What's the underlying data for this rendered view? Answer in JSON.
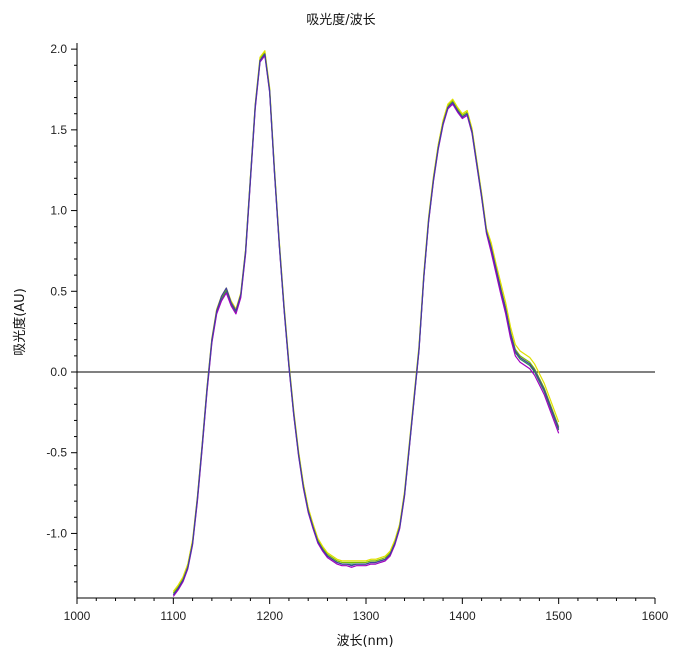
{
  "chart_data": {
    "type": "line",
    "title": "吸光度/波长",
    "xlabel": "波长(nm)",
    "ylabel": "吸光度(AU)",
    "xlim": [
      1000,
      1600
    ],
    "ylim": [
      -1.4,
      2.1
    ],
    "xticks": [
      1000,
      1100,
      1200,
      1300,
      1400,
      1500,
      1600
    ],
    "yticks": [
      -1.0,
      -0.5,
      0.0,
      0.5,
      1.0,
      1.5,
      2.0
    ],
    "xtick_labels": [
      "1000",
      "1100",
      "1200",
      "1300",
      "1400",
      "1500",
      "1600"
    ],
    "ytick_labels": [
      "-1.0",
      "-0.5",
      "0.0",
      "0.5",
      "1.0",
      "1.5",
      "2.0"
    ],
    "zero_line": 0.0,
    "grid": false,
    "legend": "none",
    "x": [
      1100,
      1105,
      1110,
      1115,
      1120,
      1125,
      1130,
      1135,
      1140,
      1145,
      1150,
      1155,
      1160,
      1165,
      1170,
      1175,
      1180,
      1185,
      1190,
      1195,
      1200,
      1205,
      1210,
      1215,
      1220,
      1225,
      1230,
      1235,
      1240,
      1245,
      1250,
      1255,
      1260,
      1265,
      1270,
      1275,
      1280,
      1285,
      1290,
      1295,
      1300,
      1305,
      1310,
      1315,
      1320,
      1325,
      1330,
      1335,
      1340,
      1345,
      1350,
      1355,
      1360,
      1365,
      1370,
      1375,
      1380,
      1385,
      1390,
      1395,
      1400,
      1405,
      1410,
      1415,
      1420,
      1425,
      1430,
      1435,
      1440,
      1445,
      1450,
      1455,
      1460,
      1465,
      1470,
      1475,
      1480,
      1485,
      1490,
      1495,
      1500
    ],
    "series": [
      {
        "color": "#7cc000",
        "values": [
          -1.37,
          -1.33,
          -1.28,
          -1.2,
          -1.05,
          -0.78,
          -0.45,
          -0.1,
          0.2,
          0.38,
          0.46,
          0.51,
          0.43,
          0.38,
          0.48,
          0.75,
          1.2,
          1.65,
          1.94,
          1.98,
          1.75,
          1.25,
          0.8,
          0.4,
          0.05,
          -0.25,
          -0.5,
          -0.7,
          -0.85,
          -0.95,
          -1.04,
          -1.09,
          -1.13,
          -1.15,
          -1.17,
          -1.18,
          -1.18,
          -1.18,
          -1.18,
          -1.18,
          -1.18,
          -1.17,
          -1.17,
          -1.16,
          -1.15,
          -1.12,
          -1.05,
          -0.95,
          -0.75,
          -0.45,
          -0.15,
          0.15,
          0.6,
          0.95,
          1.2,
          1.4,
          1.55,
          1.65,
          1.68,
          1.63,
          1.59,
          1.61,
          1.5,
          1.3,
          1.1,
          0.88,
          0.78,
          0.65,
          0.52,
          0.4,
          0.25,
          0.14,
          0.1,
          0.08,
          0.06,
          0.02,
          -0.04,
          -0.1,
          -0.18,
          -0.26,
          -0.34
        ]
      },
      {
        "color": "#e0e000",
        "values": [
          -1.36,
          -1.32,
          -1.27,
          -1.19,
          -1.04,
          -0.77,
          -0.44,
          -0.09,
          0.21,
          0.39,
          0.47,
          0.52,
          0.44,
          0.39,
          0.49,
          0.76,
          1.21,
          1.66,
          1.95,
          1.99,
          1.76,
          1.26,
          0.81,
          0.41,
          0.06,
          -0.24,
          -0.49,
          -0.69,
          -0.84,
          -0.94,
          -1.03,
          -1.08,
          -1.12,
          -1.14,
          -1.16,
          -1.17,
          -1.17,
          -1.17,
          -1.17,
          -1.17,
          -1.17,
          -1.16,
          -1.16,
          -1.15,
          -1.14,
          -1.11,
          -1.04,
          -0.94,
          -0.74,
          -0.44,
          -0.14,
          0.16,
          0.61,
          0.96,
          1.21,
          1.41,
          1.56,
          1.66,
          1.69,
          1.64,
          1.6,
          1.62,
          1.51,
          1.31,
          1.11,
          0.89,
          0.8,
          0.67,
          0.55,
          0.43,
          0.28,
          0.17,
          0.13,
          0.11,
          0.09,
          0.05,
          -0.01,
          -0.07,
          -0.15,
          -0.23,
          -0.31
        ]
      },
      {
        "color": "#2e8b57",
        "values": [
          -1.38,
          -1.34,
          -1.29,
          -1.21,
          -1.06,
          -0.79,
          -0.46,
          -0.11,
          0.19,
          0.37,
          0.45,
          0.5,
          0.42,
          0.37,
          0.47,
          0.74,
          1.19,
          1.64,
          1.93,
          1.97,
          1.74,
          1.24,
          0.79,
          0.39,
          0.04,
          -0.26,
          -0.51,
          -0.71,
          -0.86,
          -0.96,
          -1.05,
          -1.1,
          -1.14,
          -1.16,
          -1.18,
          -1.19,
          -1.19,
          -1.19,
          -1.19,
          -1.19,
          -1.19,
          -1.18,
          -1.18,
          -1.17,
          -1.16,
          -1.13,
          -1.06,
          -0.96,
          -0.76,
          -0.46,
          -0.16,
          0.14,
          0.59,
          0.94,
          1.19,
          1.39,
          1.54,
          1.64,
          1.67,
          1.62,
          1.58,
          1.6,
          1.49,
          1.29,
          1.09,
          0.87,
          0.76,
          0.63,
          0.5,
          0.38,
          0.23,
          0.12,
          0.08,
          0.06,
          0.04,
          0.0,
          -0.06,
          -0.12,
          -0.2,
          -0.28,
          -0.36
        ]
      },
      {
        "color": "#a000c0",
        "values": [
          -1.39,
          -1.35,
          -1.3,
          -1.22,
          -1.07,
          -0.8,
          -0.47,
          -0.12,
          0.18,
          0.36,
          0.44,
          0.49,
          0.41,
          0.36,
          0.46,
          0.73,
          1.18,
          1.63,
          1.92,
          1.96,
          1.73,
          1.23,
          0.78,
          0.38,
          0.03,
          -0.27,
          -0.52,
          -0.72,
          -0.87,
          -0.97,
          -1.06,
          -1.11,
          -1.15,
          -1.17,
          -1.19,
          -1.2,
          -1.2,
          -1.21,
          -1.2,
          -1.2,
          -1.2,
          -1.19,
          -1.19,
          -1.18,
          -1.17,
          -1.14,
          -1.07,
          -0.97,
          -0.77,
          -0.47,
          -0.17,
          0.13,
          0.58,
          0.93,
          1.18,
          1.38,
          1.53,
          1.63,
          1.66,
          1.61,
          1.57,
          1.59,
          1.48,
          1.28,
          1.08,
          0.86,
          0.74,
          0.61,
          0.48,
          0.36,
          0.21,
          0.1,
          0.06,
          0.04,
          0.02,
          -0.02,
          -0.08,
          -0.14,
          -0.22,
          -0.3,
          -0.38
        ]
      },
      {
        "color": "#4040a0",
        "values": [
          -1.38,
          -1.34,
          -1.29,
          -1.21,
          -1.06,
          -0.78,
          -0.45,
          -0.1,
          0.2,
          0.38,
          0.47,
          0.52,
          0.43,
          0.38,
          0.48,
          0.75,
          1.2,
          1.65,
          1.93,
          1.97,
          1.74,
          1.24,
          0.79,
          0.39,
          0.04,
          -0.26,
          -0.51,
          -0.71,
          -0.86,
          -0.96,
          -1.05,
          -1.1,
          -1.14,
          -1.16,
          -1.18,
          -1.19,
          -1.19,
          -1.2,
          -1.19,
          -1.19,
          -1.19,
          -1.18,
          -1.18,
          -1.17,
          -1.16,
          -1.13,
          -1.06,
          -0.96,
          -0.76,
          -0.46,
          -0.16,
          0.14,
          0.59,
          0.94,
          1.19,
          1.39,
          1.54,
          1.64,
          1.67,
          1.62,
          1.58,
          1.6,
          1.49,
          1.29,
          1.09,
          0.87,
          0.77,
          0.64,
          0.51,
          0.39,
          0.24,
          0.13,
          0.09,
          0.07,
          0.05,
          0.01,
          -0.05,
          -0.11,
          -0.19,
          -0.27,
          -0.35
        ]
      }
    ]
  }
}
